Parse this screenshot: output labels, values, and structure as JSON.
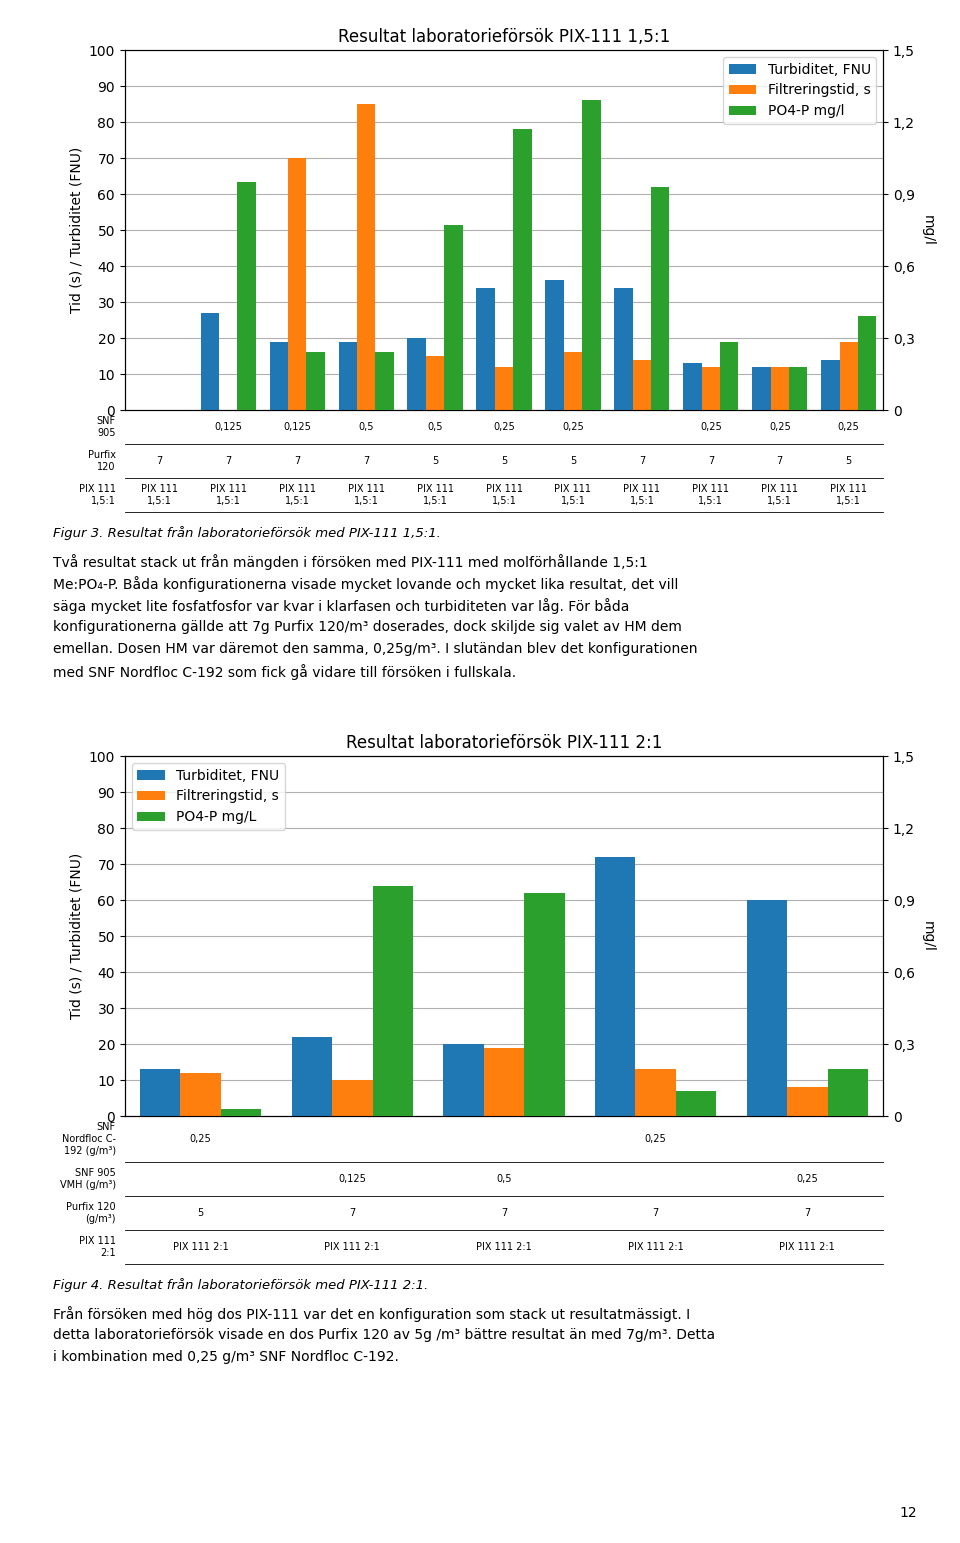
{
  "chart_data": [
    {
      "type": "bar",
      "title": "Resultat laboratorieförsök PIX-111 1,5:1",
      "y_label": "Tid (s) / Turbiditet (FNU)",
      "y2_label": "mg/l",
      "categories": [
        null,
        null,
        null,
        null,
        null,
        null,
        null,
        null,
        null,
        null,
        null
      ],
      "series": [
        {
          "name": "Turbiditet, FNU",
          "color": "#1f77b4",
          "values": [
            0,
            27,
            19,
            19,
            20,
            34,
            36,
            34,
            13,
            12,
            14
          ]
        },
        {
          "name": "Filtreringstid, s",
          "color": "#ff7f0e",
          "values": [
            0,
            0,
            70,
            85,
            15,
            12,
            16,
            14,
            12,
            12,
            19
          ]
        },
        {
          "name": "PO4-P mg/l",
          "color": "#2ca02c",
          "axis": "y2",
          "values": [
            0.0,
            0.95,
            0.24,
            0.24,
            0.77,
            1.17,
            1.29,
            0.93,
            0.285,
            0.18,
            0.39
          ]
        }
      ],
      "ylim": [
        0,
        100
      ],
      "yticks": [
        0,
        10,
        20,
        30,
        40,
        50,
        60,
        70,
        80,
        90,
        100
      ],
      "y2lim": [
        0,
        1.5
      ],
      "y2ticks": [
        0,
        {
          "value": 0.3,
          "label": "0,3"
        },
        {
          "value": 0.6,
          "label": "0,6"
        },
        {
          "value": 0.9,
          "label": "0,9"
        },
        {
          "value": 1.2,
          "label": "1,2"
        },
        {
          "value": 1.5,
          "label": "1,5"
        }
      ],
      "grid": true,
      "legend": "upper right",
      "table": [
        {
          "label": "SNF\n905",
          "cells": [
            null,
            "0,125",
            "0,125",
            "0,5",
            "0,5",
            "0,25",
            "0,25",
            null,
            "0,25",
            "0,25",
            "0,25"
          ]
        },
        {
          "label": "Purfix\n120",
          "cells": [
            "7",
            "7",
            "7",
            "7",
            "5",
            "5",
            "5",
            "7",
            "7",
            "7",
            "5"
          ]
        },
        {
          "label": "PIX 111\n1,5:1",
          "cells": [
            "PIX 111\n1,5:1",
            "PIX 111\n1,5:1",
            "PIX 111\n1,5:1",
            "PIX 111\n1,5:1",
            "PIX 111\n1,5:1",
            "PIX 111\n1,5:1",
            "PIX 111\n1,5:1",
            "PIX 111\n1,5:1",
            "PIX 111\n1,5:1",
            "PIX 111\n1,5:1",
            "PIX 111\n1,5:1"
          ]
        }
      ],
      "annotations": [
        "Figur 3. Resultat från laboratorieförsök med PIX-111 1,5:1.",
        "Två resultat stack ut från mängden i försöken med PIX-111 med molförhållande 1,5:1",
        "Me:PO₄-P. Båda konfigurationerna visade mycket lovande och mycket lika resultat, det vill",
        "säga mycket lite fosfatfosfor var kvar i klarfasen och turbiditeten var låg. För båda",
        "konfigurationerna gällde att 7g Purfix 120/m³ doserades, dock skiljde sig valet av HM dem",
        "emellan. Dosen HM var däremot den samma, 0,25g/m³. I slutändan blev det konfigurationen",
        "med SNF Nordfloc C-192 som fick gå vidare till försöken i fullskala."
      ]
    },
    {
      "type": "bar",
      "title": "Resultat laboratorieförsök PIX-111 2:1",
      "y_label": "Tid (s) / Turbiditet (FNU)",
      "y2_label": "mg/l",
      "categories": [
        null,
        null,
        null,
        null,
        null
      ],
      "series": [
        {
          "name": "Turbiditet, FNU",
          "color": "#1f77b4",
          "values": [
            13,
            22,
            20,
            72,
            60
          ]
        },
        {
          "name": "Filtreringstid, s",
          "color": "#ff7f0e",
          "values": [
            12,
            10,
            19,
            13,
            8
          ]
        },
        {
          "name": "PO4-P mg/L",
          "color": "#2ca02c",
          "axis": "y2",
          "values": [
            0.03,
            0.96,
            0.93,
            0.105,
            0.195
          ]
        }
      ],
      "ylim": [
        0,
        100
      ],
      "yticks": [
        0,
        10,
        20,
        30,
        40,
        50,
        60,
        70,
        80,
        90,
        100
      ],
      "y2lim": [
        0,
        1.5
      ],
      "y2ticks": [
        0,
        {
          "value": 0.3,
          "label": "0,3"
        },
        {
          "value": 0.6,
          "label": "0,6"
        },
        {
          "value": 0.9,
          "label": "0,9"
        },
        {
          "value": 1.2,
          "label": "1,2"
        },
        {
          "value": 1.5,
          "label": "1,5"
        }
      ],
      "grid": true,
      "legend": "upper left",
      "table": [
        {
          "label": "SNF\nNordfloc C-\n192 (g/m³)",
          "cells": [
            "0,25",
            null,
            null,
            "0,25",
            null
          ]
        },
        {
          "label": "SNF 905\nVMH (g/m³)",
          "cells": [
            null,
            "0,125",
            "0,5",
            null,
            "0,25"
          ]
        },
        {
          "label": "Purfix 120\n(g/m³)",
          "cells": [
            "5",
            "7",
            "7",
            "7",
            "7"
          ]
        },
        {
          "label": "PIX 111\n2:1",
          "cells": [
            "PIX 111 2:1",
            "PIX 111 2:1",
            "PIX 111 2:1",
            "PIX 111 2:1",
            "PIX 111 2:1"
          ]
        }
      ],
      "annotations": [
        "Figur 4. Resultat från laboratorieförsök med PIX-111 2:1.",
        "Från försöken med hög dos PIX-111 var det en konfiguration som stack ut resultatmässigt. I",
        "detta laboratorieförsök visade en dos Purfix 120 av 5g /m³ bättre resultat än med 7g/m³. Detta",
        "i kombination med 0,25 g/m³ SNF Nordfloc C-192."
      ]
    }
  ],
  "annotations": [
    "12"
  ]
}
